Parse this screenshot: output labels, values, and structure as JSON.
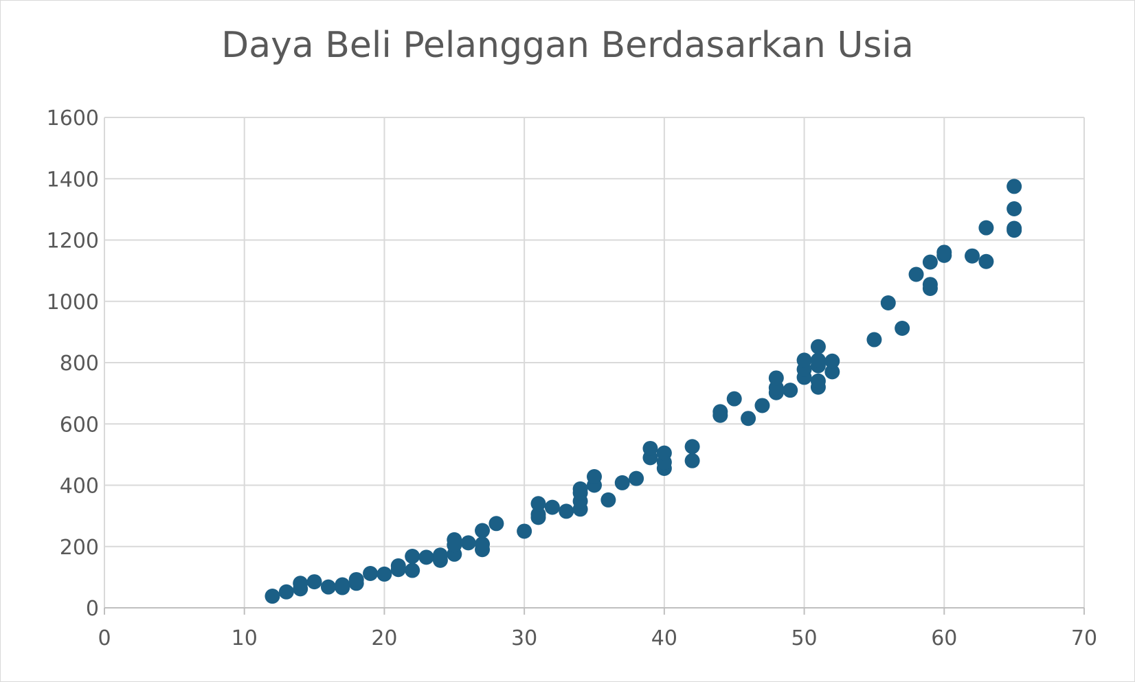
{
  "colors": {
    "marker": "#1b5f86",
    "grid": "#d9d9d9",
    "text": "#595959"
  },
  "chart_data": {
    "type": "scatter",
    "title": "Daya Beli Pelanggan Berdasarkan Usia",
    "xlabel": "",
    "ylabel": "",
    "xlim": [
      0,
      70
    ],
    "ylim": [
      0,
      1600
    ],
    "x_ticks": [
      0,
      10,
      20,
      30,
      40,
      50,
      60,
      70
    ],
    "y_ticks": [
      0,
      200,
      400,
      600,
      800,
      1000,
      1200,
      1400,
      1600
    ],
    "grid": true,
    "legend": "none",
    "series": [
      {
        "points": [
          [
            12,
            38
          ],
          [
            13,
            52
          ],
          [
            14,
            62
          ],
          [
            14,
            80
          ],
          [
            15,
            85
          ],
          [
            16,
            68
          ],
          [
            17,
            66
          ],
          [
            17,
            75
          ],
          [
            18,
            80
          ],
          [
            18,
            92
          ],
          [
            19,
            112
          ],
          [
            20,
            110
          ],
          [
            21,
            125
          ],
          [
            21,
            137
          ],
          [
            22,
            122
          ],
          [
            22,
            168
          ],
          [
            23,
            165
          ],
          [
            24,
            155
          ],
          [
            24,
            172
          ],
          [
            25,
            175
          ],
          [
            25,
            205
          ],
          [
            25,
            222
          ],
          [
            26,
            212
          ],
          [
            27,
            190
          ],
          [
            27,
            208
          ],
          [
            27,
            252
          ],
          [
            28,
            275
          ],
          [
            30,
            250
          ],
          [
            31,
            295
          ],
          [
            31,
            305
          ],
          [
            31,
            340
          ],
          [
            32,
            328
          ],
          [
            33,
            315
          ],
          [
            34,
            322
          ],
          [
            34,
            348
          ],
          [
            34,
            375
          ],
          [
            34,
            388
          ],
          [
            35,
            400
          ],
          [
            35,
            428
          ],
          [
            36,
            352
          ],
          [
            37,
            408
          ],
          [
            38,
            422
          ],
          [
            39,
            490
          ],
          [
            39,
            520
          ],
          [
            40,
            455
          ],
          [
            40,
            475
          ],
          [
            40,
            505
          ],
          [
            42,
            480
          ],
          [
            42,
            526
          ],
          [
            44,
            628
          ],
          [
            44,
            640
          ],
          [
            45,
            682
          ],
          [
            46,
            618
          ],
          [
            47,
            660
          ],
          [
            48,
            702
          ],
          [
            48,
            718
          ],
          [
            48,
            750
          ],
          [
            49,
            710
          ],
          [
            50,
            752
          ],
          [
            50,
            778
          ],
          [
            50,
            808
          ],
          [
            51,
            720
          ],
          [
            51,
            740
          ],
          [
            51,
            790
          ],
          [
            51,
            808
          ],
          [
            51,
            852
          ],
          [
            52,
            770
          ],
          [
            52,
            805
          ],
          [
            55,
            875
          ],
          [
            56,
            995
          ],
          [
            57,
            912
          ],
          [
            58,
            1088
          ],
          [
            59,
            1042
          ],
          [
            59,
            1055
          ],
          [
            59,
            1128
          ],
          [
            60,
            1150
          ],
          [
            60,
            1160
          ],
          [
            62,
            1148
          ],
          [
            63,
            1130
          ],
          [
            63,
            1240
          ],
          [
            65,
            1232
          ],
          [
            65,
            1238
          ],
          [
            65,
            1302
          ],
          [
            65,
            1375
          ]
        ]
      }
    ]
  }
}
